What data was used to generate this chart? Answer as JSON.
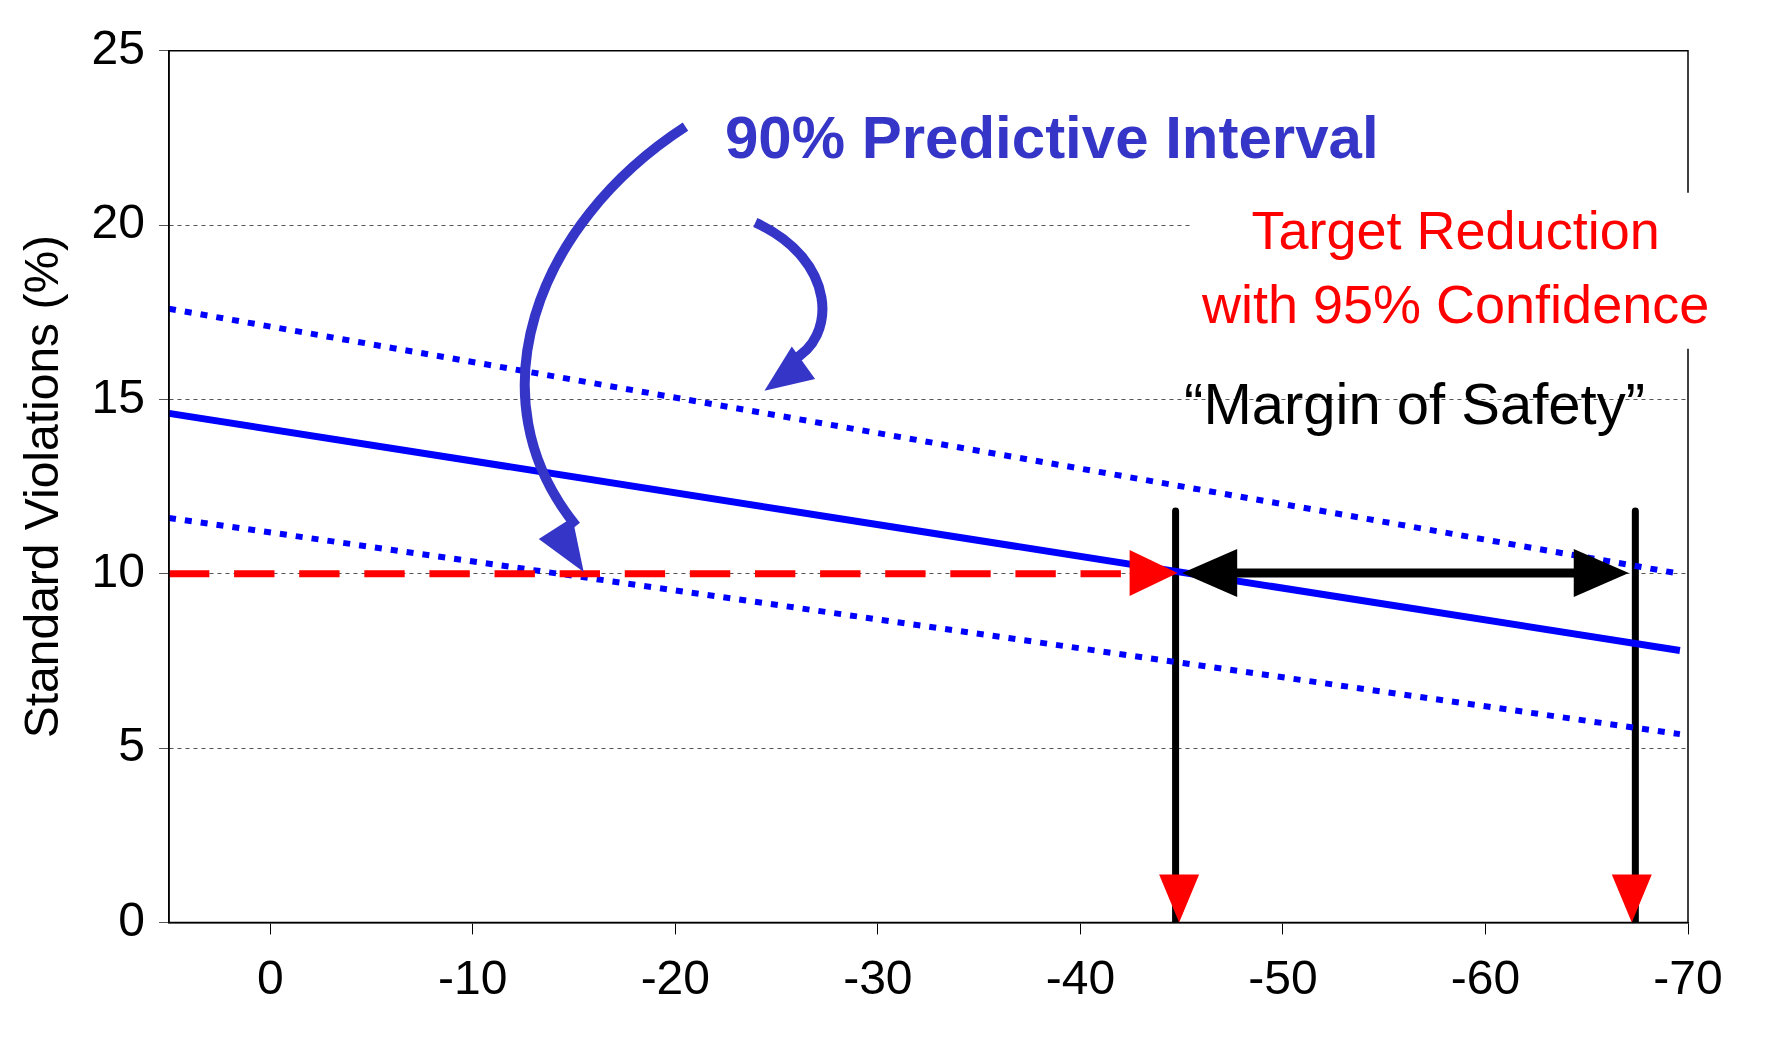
{
  "chart_data": {
    "type": "line",
    "ylabel": "Standard Violations (%)",
    "annotations": [
      "90% Predictive Interval",
      "Target Reduction\nwith 95% Confidence",
      "“Margin of Safety”"
    ],
    "xlim": [
      5,
      -70
    ],
    "ylim": [
      0,
      25
    ],
    "xticks": [
      0,
      -10,
      -20,
      -30,
      -40,
      -50,
      -60,
      -70
    ],
    "yticks": [
      0,
      5,
      10,
      15,
      20,
      25
    ],
    "grid": "y",
    "marker": "none",
    "series": [
      {
        "x": [
          5,
          -42
        ],
        "values": [
          10,
          10
        ],
        "color": "#ff0000",
        "line_style": "dashed"
      },
      {
        "x": [
          5,
          -69.6
        ],
        "values": [
          17.6,
          10.0
        ],
        "color": "#0000ff",
        "line_style": "dotted"
      },
      {
        "x": [
          5,
          -69.6
        ],
        "values": [
          14.6,
          7.8
        ],
        "color": "#0000ff",
        "line_style": "solid"
      },
      {
        "x": [
          5,
          -69.6
        ],
        "values": [
          11.6,
          5.4
        ],
        "color": "#0000ff",
        "line_style": "dotted"
      },
      {
        "x": [
          -44.7,
          -44.7
        ],
        "values": [
          11.8,
          0
        ],
        "color": "#000000",
        "line_style": "solid"
      },
      {
        "x": [
          -67.4,
          -67.4
        ],
        "values": [
          11.8,
          0
        ],
        "color": "#000000",
        "line_style": "solid"
      }
    ]
  }
}
